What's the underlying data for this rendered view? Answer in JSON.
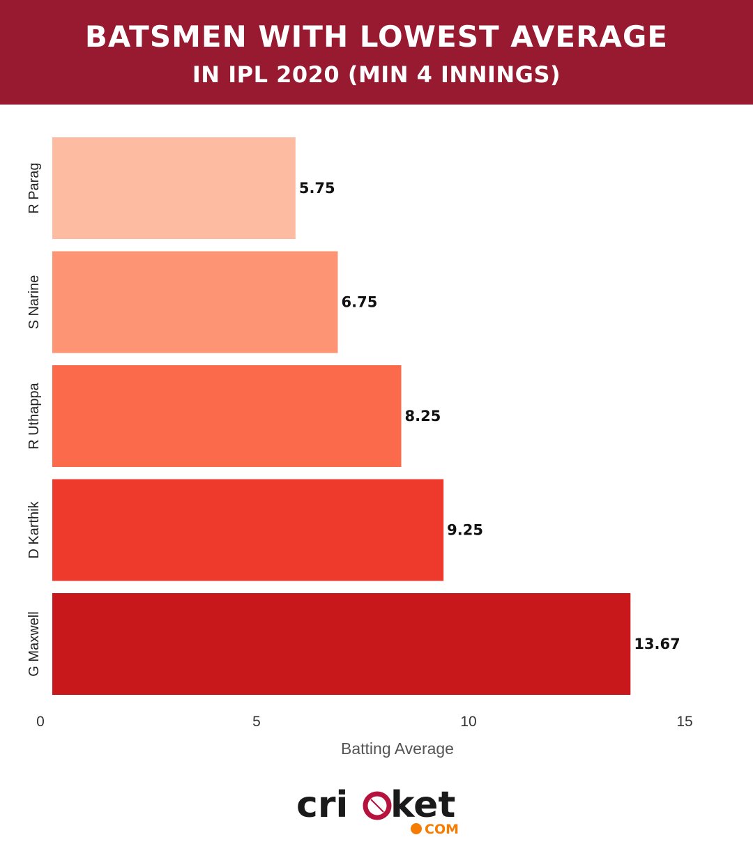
{
  "header": {
    "title": "BATSMEN WITH LOWEST AVERAGE",
    "subtitle": "IN IPL 2020 (MIN 4 INNINGS)"
  },
  "chart_data": {
    "type": "bar",
    "orientation": "horizontal",
    "categories": [
      "R Parag",
      "S Narine",
      "R Uthappa",
      "D Karthik",
      "G Maxwell"
    ],
    "values": [
      5.75,
      6.75,
      8.25,
      9.25,
      13.67
    ],
    "value_labels": [
      "5.75",
      "6.75",
      "8.25",
      "9.25",
      "13.67"
    ],
    "bar_colors": [
      "#fdbca2",
      "#fd9473",
      "#fb6b4b",
      "#ee3a2c",
      "#c8181c"
    ],
    "xlabel": "Batting Average",
    "ylabel": "",
    "xlim": [
      0,
      15
    ],
    "xticks": [
      0,
      5,
      10,
      15
    ],
    "grid": false,
    "legend": "none"
  },
  "logo": {
    "text_main": "cricket",
    "text_domain": "COM",
    "colors": {
      "main": "#1a1a1a",
      "ball": "#b5123e",
      "dot": "#f57c00"
    }
  }
}
